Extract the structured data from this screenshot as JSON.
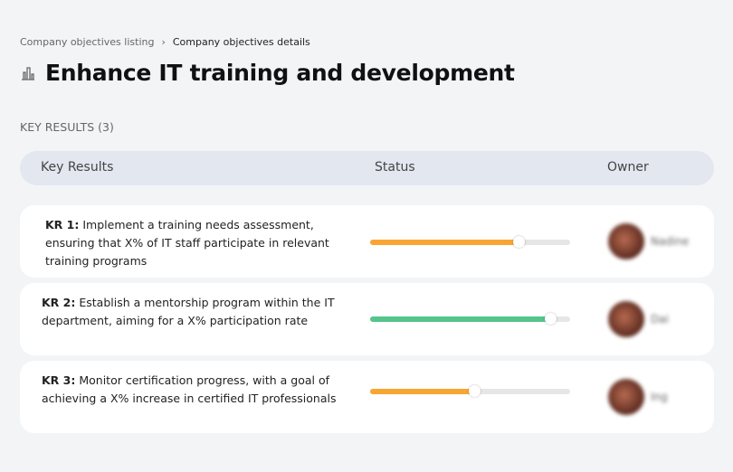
{
  "breadcrumb": {
    "parent": "Company objectives listing",
    "separator": "›",
    "current": "Company objectives details"
  },
  "page": {
    "icon": "building-chart-icon",
    "title": "Enhance IT training and development"
  },
  "section_label": "KEY RESULTS (3)",
  "table": {
    "headers": {
      "key_results": "Key Results",
      "status": "Status",
      "owner": "Owner"
    }
  },
  "rows": [
    {
      "label": "KR 1:",
      "text": "Implement a training needs assessment, ensuring that X% of IT staff participate in relevant training programs",
      "progress": 74,
      "color": "#f9a533",
      "owner": "Nadine"
    },
    {
      "label": "KR 2:",
      "text": "Establish a mentorship program within the IT department, aiming for a X% participation rate",
      "progress": 90,
      "color": "#55c48d",
      "owner": "Dai"
    },
    {
      "label": "KR 3:",
      "text": "Monitor certification progress, with a goal of achieving a X% increase in certified IT professionals",
      "progress": 52,
      "color": "#f9a533",
      "owner": "Ing"
    }
  ]
}
